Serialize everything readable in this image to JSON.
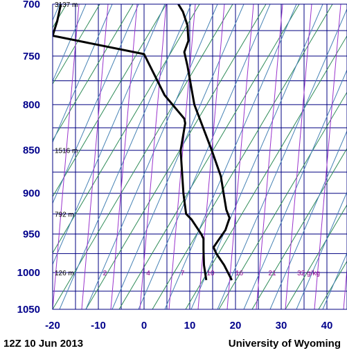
{
  "chart_data": {
    "type": "skew-t",
    "x_ticks": [
      -20,
      -10,
      0,
      10,
      20,
      30,
      40
    ],
    "y_ticks": [
      700,
      750,
      800,
      850,
      900,
      950,
      1000,
      1050
    ],
    "xlim": [
      -20,
      44
    ],
    "ylim": [
      700,
      1050
    ],
    "height_labels": [
      {
        "p": 700,
        "text": "3137 m"
      },
      {
        "p": 850,
        "text": "1516 m"
      },
      {
        "p": 925,
        "text": "792 m"
      },
      {
        "p": 1000,
        "text": "126 m"
      }
    ],
    "mixing_ratio_labels": [
      {
        "w": 1,
        "x": -9.0,
        "text": "2"
      },
      {
        "w": 2,
        "x": 0.5,
        "text": "4"
      },
      {
        "w": 3,
        "x": 8.0,
        "text": "7"
      },
      {
        "w": 4,
        "x": 13.7,
        "text": "10"
      },
      {
        "w": 5,
        "x": 20.0,
        "text": "16"
      },
      {
        "w": 6,
        "x": 27.2,
        "text": "21"
      },
      {
        "w": 7,
        "x": 33.5,
        "text": "32 g/kg"
      }
    ],
    "series": [
      {
        "values": [
          {
            "p": 700,
            "x": 7.5
          },
          {
            "p": 707,
            "x": 8.5
          },
          {
            "p": 720,
            "x": 9.5
          },
          {
            "p": 735,
            "x": 9.7
          },
          {
            "p": 746,
            "x": 8.8
          },
          {
            "p": 760,
            "x": 9.5
          },
          {
            "p": 800,
            "x": 11.0
          },
          {
            "p": 850,
            "x": 14.8
          },
          {
            "p": 880,
            "x": 16.8
          },
          {
            "p": 900,
            "x": 17.4
          },
          {
            "p": 920,
            "x": 18.0
          },
          {
            "p": 930,
            "x": 18.7
          },
          {
            "p": 945,
            "x": 17.8
          },
          {
            "p": 960,
            "x": 16.0
          },
          {
            "p": 967,
            "x": 15.2
          },
          {
            "p": 975,
            "x": 15.8
          },
          {
            "p": 990,
            "x": 17.5
          },
          {
            "p": 1010,
            "x": 19.2
          }
        ]
      },
      {
        "values": [
          {
            "p": 700,
            "x": -18.2
          },
          {
            "p": 716,
            "x": -19.0
          },
          {
            "p": 730,
            "x": -20.0
          },
          {
            "p": 748,
            "x": 0.0
          },
          {
            "p": 790,
            "x": 4.5
          },
          {
            "p": 815,
            "x": 8.8
          },
          {
            "p": 820,
            "x": 9.0
          },
          {
            "p": 850,
            "x": 8.0
          },
          {
            "p": 900,
            "x": 8.6
          },
          {
            "p": 925,
            "x": 9.2
          },
          {
            "p": 932,
            "x": 10.4
          },
          {
            "p": 950,
            "x": 12.5
          },
          {
            "p": 956,
            "x": 13.0
          },
          {
            "p": 970,
            "x": 13.0
          },
          {
            "p": 990,
            "x": 13.1
          },
          {
            "p": 1010,
            "x": 13.6
          }
        ]
      }
    ]
  },
  "footer": {
    "time": "12Z 10 Jun 2013",
    "source": "University of Wyoming"
  }
}
